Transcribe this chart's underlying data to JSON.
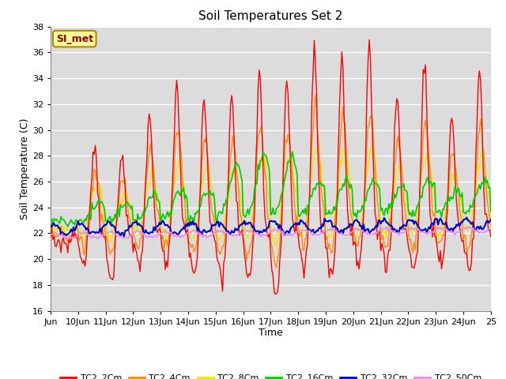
{
  "title": "Soil Temperatures Set 2",
  "xlabel": "Time",
  "ylabel": "Soil Temperature (C)",
  "ylim": [
    16,
    38
  ],
  "xlim_start": 0,
  "xlim_end": 384,
  "bg_color": "#dcdcdc",
  "colors": {
    "TC2_2Cm": "#ff0000",
    "TC2_4Cm": "#ff8c00",
    "TC2_8Cm": "#e8e800",
    "TC2_16Cm": "#00cc00",
    "TC2_32Cm": "#0000cc",
    "TC2_50Cm": "#ee88ee"
  },
  "series_names": [
    "TC2_2Cm",
    "TC2_4Cm",
    "TC2_8Cm",
    "TC2_16Cm",
    "TC2_32Cm",
    "TC2_50Cm"
  ],
  "legend_label": "SI_met",
  "yticks": [
    16,
    18,
    20,
    22,
    24,
    26,
    28,
    30,
    32,
    34,
    36,
    38
  ],
  "xtick_positions": [
    0,
    24,
    48,
    72,
    96,
    120,
    144,
    168,
    192,
    216,
    240,
    264,
    288,
    312,
    336,
    360,
    384
  ],
  "xtick_labels": [
    "Jun",
    "10Jun",
    "11Jun",
    "12Jun",
    "13Jun",
    "14Jun",
    "15Jun",
    "16Jun",
    "17Jun",
    "18Jun",
    "19Jun",
    "20Jun",
    "21Jun",
    "22Jun",
    "23Jun",
    "24Jun",
    "25"
  ]
}
